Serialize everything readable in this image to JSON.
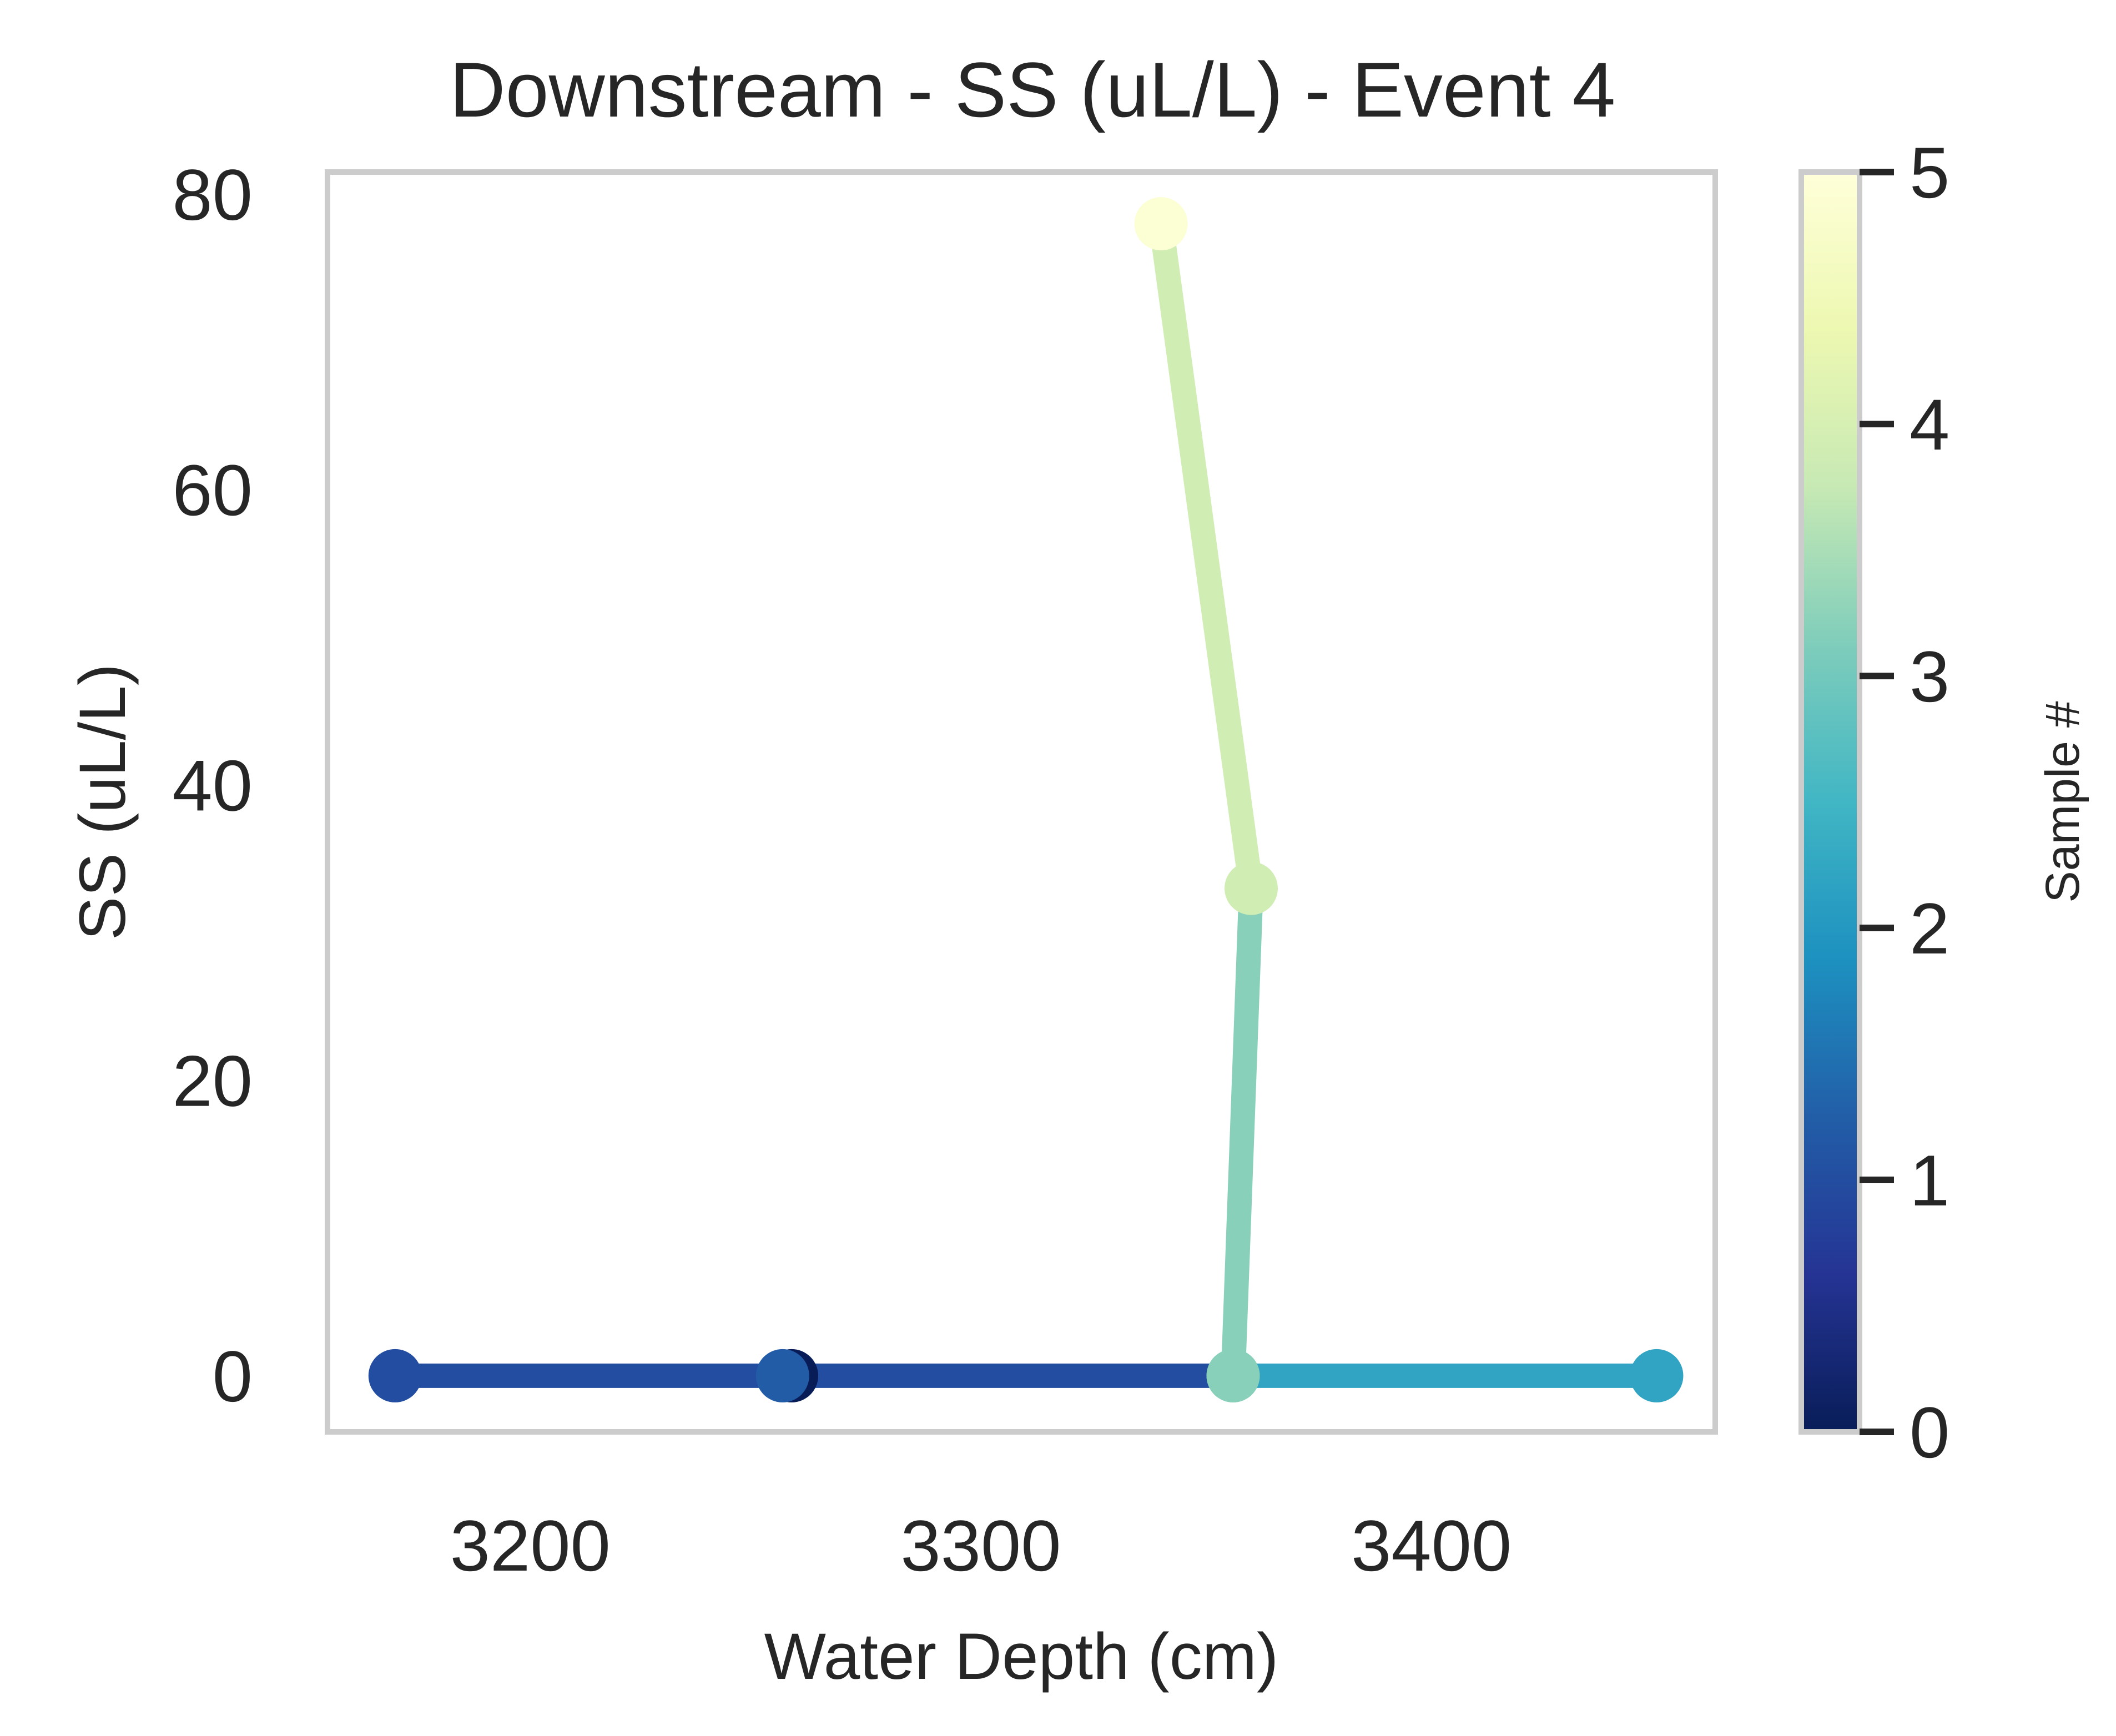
{
  "chart_data": {
    "type": "line",
    "title": "Downstream - SS (uL/L) - Event 4",
    "xlabel": "Water Depth (cm)",
    "ylabel": "SS (uL/L)",
    "xlim": [
      3155,
      3463
    ],
    "ylim": [
      -3.8,
      81.5
    ],
    "xticks": [
      "3200",
      "3300",
      "3400"
    ],
    "yticks": [
      "0",
      "20",
      "40",
      "60",
      "80"
    ],
    "grid": false,
    "points": [
      {
        "sample": 1,
        "x": 3170,
        "y": 0
      },
      {
        "sample": 0,
        "x": 3258,
        "y": 0
      },
      {
        "sample": 1.2,
        "x": 3256,
        "y": 0
      },
      {
        "sample": 3.2,
        "x": 3356,
        "y": 0
      },
      {
        "sample": 2.2,
        "x": 3450,
        "y": 0
      },
      {
        "sample": 3.2,
        "x": 3356,
        "y": 0
      },
      {
        "sample": 3.9,
        "x": 3360,
        "y": 33
      },
      {
        "sample": 4.9,
        "x": 3340,
        "y": 78
      }
    ],
    "segments": [
      {
        "from": 0,
        "to": 1,
        "sample": 1
      },
      {
        "from": 2,
        "to": 3,
        "sample": 1
      },
      {
        "from": 5,
        "to": 4,
        "sample": 2.2
      },
      {
        "from": 5,
        "to": 6,
        "sample": 3.2
      },
      {
        "from": 6,
        "to": 7,
        "sample": 3.9
      }
    ],
    "colorbar": {
      "label": "Sample #",
      "range": [
        0,
        5
      ],
      "ticks": [
        "0",
        "1",
        "2",
        "3",
        "4",
        "5"
      ],
      "colormap": "YlGnBu_r",
      "stops": [
        "#081d58",
        "#253494",
        "#225ea8",
        "#1d91c0",
        "#41b6c4",
        "#7fcdbb",
        "#c7e9b4",
        "#edf8b1",
        "#ffffd9"
      ]
    }
  }
}
